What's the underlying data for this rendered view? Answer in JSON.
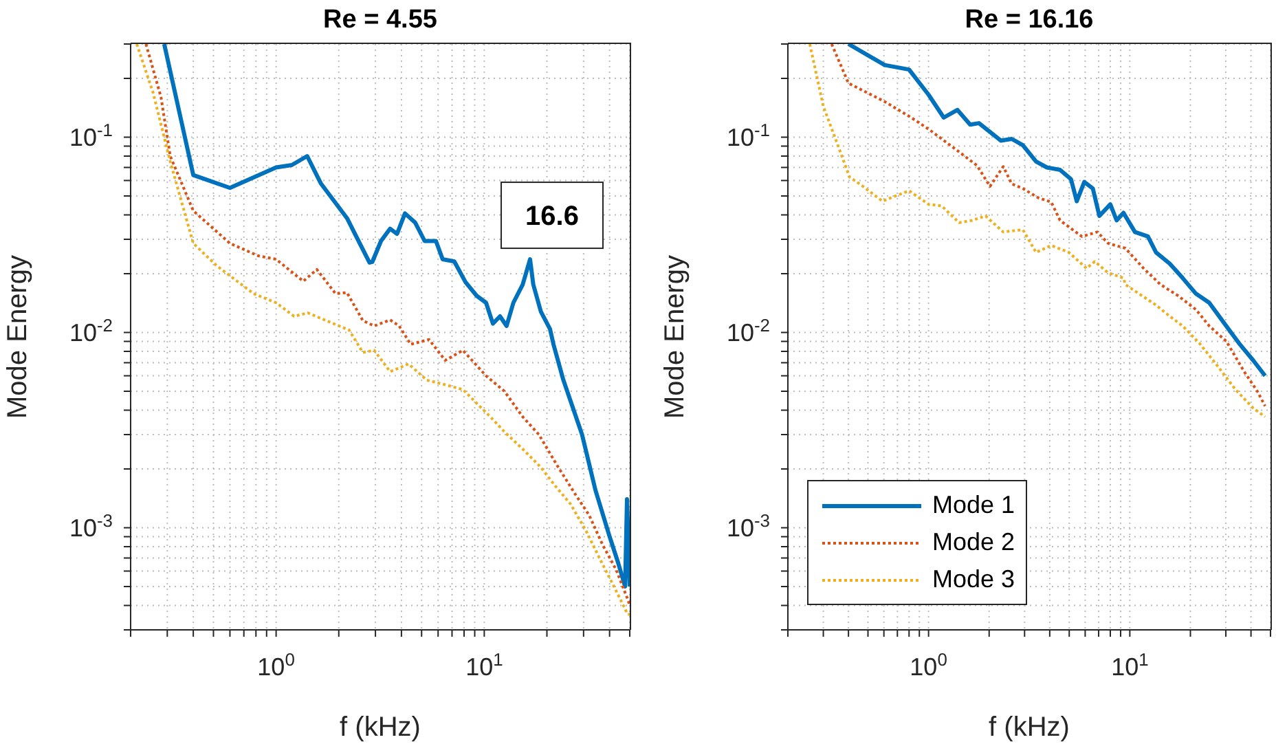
{
  "chart_data": [
    {
      "type": "line",
      "title": "Re = 4.55",
      "xlabel": "f (kHz)",
      "ylabel": "Mode Energy",
      "log": "xy",
      "grid": true,
      "xlim": [
        0.2,
        50
      ],
      "xticks": [
        {
          "value": 0.2,
          "label": null
        },
        {
          "value": 0.3,
          "label": null
        },
        {
          "value": 0.4,
          "label": null
        },
        {
          "value": 0.5,
          "label": null
        },
        {
          "value": 0.6,
          "label": null
        },
        {
          "value": 0.7,
          "label": null
        },
        {
          "value": 0.8,
          "label": null
        },
        {
          "value": 0.9,
          "label": null
        },
        {
          "value": 1,
          "label": "10$^{0}$"
        },
        {
          "value": 2,
          "label": null
        },
        {
          "value": 3,
          "label": null
        },
        {
          "value": 4,
          "label": null
        },
        {
          "value": 5,
          "label": null
        },
        {
          "value": 6,
          "label": null
        },
        {
          "value": 7,
          "label": null
        },
        {
          "value": 8,
          "label": null
        },
        {
          "value": 9,
          "label": null
        },
        {
          "value": 10,
          "label": "10$^{1}$"
        },
        {
          "value": 20,
          "label": null
        },
        {
          "value": 30,
          "label": null
        },
        {
          "value": 40,
          "label": null
        },
        {
          "value": 50,
          "label": null
        }
      ],
      "ylim": [
        0.0003,
        0.3
      ],
      "yticks": [
        {
          "value": 0.0003,
          "label": null
        },
        {
          "value": 0.0004,
          "label": null
        },
        {
          "value": 0.0005,
          "label": null
        },
        {
          "value": 0.0006,
          "label": null
        },
        {
          "value": 0.0007,
          "label": null
        },
        {
          "value": 0.0008,
          "label": null
        },
        {
          "value": 0.0009,
          "label": null
        },
        {
          "value": 0.001,
          "label": "10$^{-3}$"
        },
        {
          "value": 0.002,
          "label": null
        },
        {
          "value": 0.003,
          "label": null
        },
        {
          "value": 0.004,
          "label": null
        },
        {
          "value": 0.005,
          "label": null
        },
        {
          "value": 0.006,
          "label": null
        },
        {
          "value": 0.007,
          "label": null
        },
        {
          "value": 0.008,
          "label": null
        },
        {
          "value": 0.009,
          "label": null
        },
        {
          "value": 0.01,
          "label": "10$^{-2}$"
        },
        {
          "value": 0.02,
          "label": null
        },
        {
          "value": 0.03,
          "label": null
        },
        {
          "value": 0.04,
          "label": null
        },
        {
          "value": 0.05,
          "label": null
        },
        {
          "value": 0.06,
          "label": null
        },
        {
          "value": 0.07,
          "label": null
        },
        {
          "value": 0.08,
          "label": null
        },
        {
          "value": 0.09,
          "label": null
        },
        {
          "value": 0.1,
          "label": "10$^{-1}$"
        },
        {
          "value": 0.2,
          "label": null
        },
        {
          "value": 0.3,
          "label": null
        }
      ],
      "annotations": [
        {
          "text": "16.6",
          "x": 16.6,
          "y": 0.0237
        }
      ],
      "series": [
        {
          "color": "#0072bd",
          "line_style": "solid",
          "x": [
            0.29,
            0.4,
            0.6,
            1.0,
            1.19,
            1.41,
            1.64,
            2.19,
            2.81,
            2.9,
            3.19,
            3.53,
            3.81,
            4.16,
            4.66,
            5.17,
            5.86,
            6.31,
            7.18,
            8.13,
            9.2,
            10.2,
            11.0,
            11.9,
            12.8,
            13.8,
            15.3,
            16.6,
            17.2,
            18.7,
            20.7,
            21.5,
            24,
            29.5,
            34.2,
            39.9,
            44,
            47.5,
            48.5,
            50
          ],
          "values": [
            0.3,
            0.064,
            0.055,
            0.07,
            0.072,
            0.08,
            0.058,
            0.0385,
            0.0228,
            0.023,
            0.0294,
            0.034,
            0.032,
            0.0407,
            0.0365,
            0.0294,
            0.0294,
            0.0237,
            0.0231,
            0.0181,
            0.0154,
            0.0142,
            0.0111,
            0.0121,
            0.0108,
            0.0142,
            0.0176,
            0.0237,
            0.0176,
            0.0128,
            0.0104,
            0.0087,
            0.0057,
            0.003,
            0.00156,
            0.00091,
            0.00066,
            0.0005,
            0.0014,
            0.0005
          ]
        },
        {
          "color": "#d95319",
          "line_style": "dotted",
          "x": [
            0.237,
            0.28,
            0.31,
            0.4,
            0.6,
            0.82,
            1.0,
            1.35,
            1.57,
            1.93,
            2.19,
            2.61,
            2.96,
            3.53,
            3.9,
            4.43,
            5.43,
            6.49,
            7.9,
            10.2,
            12.5,
            15.3,
            18.3,
            22.3,
            27.2,
            31.9,
            37,
            43,
            48.9,
            50
          ],
          "values": [
            0.3,
            0.16,
            0.08,
            0.042,
            0.0286,
            0.0247,
            0.0237,
            0.0183,
            0.021,
            0.0158,
            0.016,
            0.0115,
            0.0108,
            0.0116,
            0.0108,
            0.0087,
            0.0092,
            0.0072,
            0.0081,
            0.006,
            0.005,
            0.0037,
            0.003,
            0.0021,
            0.0015,
            0.00116,
            0.00082,
            0.00061,
            0.00043,
            0.0004
          ]
        },
        {
          "color": "#edb120",
          "line_style": "dotted",
          "x": [
            0.214,
            0.256,
            0.31,
            0.4,
            0.52,
            0.78,
            1.0,
            1.22,
            1.42,
            1.74,
            2.24,
            2.61,
            2.96,
            3.53,
            4.33,
            5.3,
            6.49,
            7.9,
            9.7,
            10.7,
            12.5,
            15.3,
            18.7,
            21.9,
            26,
            30.9,
            36,
            42,
            48.9,
            50
          ],
          "values": [
            0.3,
            0.17,
            0.075,
            0.0286,
            0.0219,
            0.0158,
            0.0142,
            0.0121,
            0.0126,
            0.0115,
            0.0103,
            0.0079,
            0.0081,
            0.0063,
            0.0069,
            0.0057,
            0.0054,
            0.0051,
            0.0041,
            0.0037,
            0.0031,
            0.00253,
            0.00204,
            0.00164,
            0.00132,
            0.00096,
            0.00069,
            0.0005,
            0.00036,
            0.00036
          ]
        }
      ]
    },
    {
      "type": "line",
      "title": "Re = 16.16",
      "xlabel": "f (kHz)",
      "ylabel": "Mode Energy",
      "log": "xy",
      "grid": true,
      "legend": "bottom left",
      "xlim": [
        0.2,
        50
      ],
      "xticks": [
        {
          "value": 0.2,
          "label": null
        },
        {
          "value": 0.3,
          "label": null
        },
        {
          "value": 0.4,
          "label": null
        },
        {
          "value": 0.5,
          "label": null
        },
        {
          "value": 0.6,
          "label": null
        },
        {
          "value": 0.7,
          "label": null
        },
        {
          "value": 0.8,
          "label": null
        },
        {
          "value": 0.9,
          "label": null
        },
        {
          "value": 1,
          "label": "10$^{0}$"
        },
        {
          "value": 2,
          "label": null
        },
        {
          "value": 3,
          "label": null
        },
        {
          "value": 4,
          "label": null
        },
        {
          "value": 5,
          "label": null
        },
        {
          "value": 6,
          "label": null
        },
        {
          "value": 7,
          "label": null
        },
        {
          "value": 8,
          "label": null
        },
        {
          "value": 9,
          "label": null
        },
        {
          "value": 10,
          "label": "10$^{1}$"
        },
        {
          "value": 20,
          "label": null
        },
        {
          "value": 30,
          "label": null
        },
        {
          "value": 40,
          "label": null
        },
        {
          "value": 50,
          "label": null
        }
      ],
      "ylim": [
        0.0003,
        0.3
      ],
      "yticks": [
        {
          "value": 0.0003,
          "label": null
        },
        {
          "value": 0.0004,
          "label": null
        },
        {
          "value": 0.0005,
          "label": null
        },
        {
          "value": 0.0006,
          "label": null
        },
        {
          "value": 0.0007,
          "label": null
        },
        {
          "value": 0.0008,
          "label": null
        },
        {
          "value": 0.0009,
          "label": null
        },
        {
          "value": 0.001,
          "label": "10$^{-3}$"
        },
        {
          "value": 0.002,
          "label": null
        },
        {
          "value": 0.003,
          "label": null
        },
        {
          "value": 0.004,
          "label": null
        },
        {
          "value": 0.005,
          "label": null
        },
        {
          "value": 0.006,
          "label": null
        },
        {
          "value": 0.007,
          "label": null
        },
        {
          "value": 0.008,
          "label": null
        },
        {
          "value": 0.009,
          "label": null
        },
        {
          "value": 0.01,
          "label": "10$^{-2}$"
        },
        {
          "value": 0.02,
          "label": null
        },
        {
          "value": 0.03,
          "label": null
        },
        {
          "value": 0.04,
          "label": null
        },
        {
          "value": 0.05,
          "label": null
        },
        {
          "value": 0.06,
          "label": null
        },
        {
          "value": 0.07,
          "label": null
        },
        {
          "value": 0.08,
          "label": null
        },
        {
          "value": 0.09,
          "label": null
        },
        {
          "value": 0.1,
          "label": "10$^{-1}$"
        },
        {
          "value": 0.2,
          "label": null
        },
        {
          "value": 0.3,
          "label": null
        }
      ],
      "series": [
        {
          "name": "Mode 1",
          "color": "#0072bd",
          "line_style": "solid",
          "x": [
            0.4,
            0.606,
            0.8,
            1.0,
            1.19,
            1.39,
            1.61,
            1.78,
            2.29,
            2.59,
            2.94,
            3.42,
            3.87,
            4.5,
            5.1,
            5.45,
            5.94,
            6.55,
            7.06,
            8.0,
            8.6,
            9.3,
            10.6,
            12.3,
            13.5,
            15.8,
            18.3,
            21.3,
            24.8,
            28.8,
            35.2,
            41,
            47
          ],
          "values": [
            0.3,
            0.234,
            0.222,
            0.165,
            0.126,
            0.138,
            0.116,
            0.118,
            0.096,
            0.098,
            0.091,
            0.075,
            0.07,
            0.068,
            0.061,
            0.047,
            0.059,
            0.0546,
            0.0395,
            0.0453,
            0.0375,
            0.041,
            0.0327,
            0.031,
            0.0257,
            0.0225,
            0.019,
            0.0158,
            0.0142,
            0.0115,
            0.0087,
            0.0072,
            0.006
          ]
        },
        {
          "name": "Mode 2",
          "color": "#d95319",
          "line_style": "dotted",
          "x": [
            0.33,
            0.4,
            0.606,
            0.82,
            1.0,
            1.42,
            1.74,
            2.02,
            2.35,
            2.59,
            2.94,
            3.5,
            4.07,
            4.5,
            5.78,
            6.9,
            7.8,
            9.5,
            11.7,
            14.2,
            17.4,
            21.3,
            24.8,
            30.2,
            37,
            43,
            47
          ],
          "values": [
            0.3,
            0.189,
            0.152,
            0.126,
            0.11,
            0.084,
            0.0716,
            0.056,
            0.0707,
            0.0577,
            0.0546,
            0.049,
            0.0465,
            0.0375,
            0.031,
            0.0327,
            0.0286,
            0.027,
            0.0213,
            0.0176,
            0.0154,
            0.0131,
            0.0108,
            0.009,
            0.0063,
            0.005,
            0.0042
          ]
        },
        {
          "name": "Mode 3",
          "color": "#edb120",
          "line_style": "dotted",
          "x": [
            0.257,
            0.3,
            0.35,
            0.405,
            0.47,
            0.59,
            0.8,
            1.0,
            1.16,
            1.42,
            1.65,
            1.92,
            2.35,
            2.94,
            3.42,
            4.07,
            4.98,
            6.09,
            6.7,
            7.8,
            9.3,
            9.5,
            11.1,
            13.5,
            15.8,
            18.3,
            22.4,
            27.4,
            33.5,
            41,
            47
          ],
          "values": [
            0.3,
            0.144,
            0.094,
            0.0625,
            0.0562,
            0.047,
            0.0532,
            0.0453,
            0.0445,
            0.0365,
            0.0375,
            0.0395,
            0.0327,
            0.0336,
            0.0257,
            0.0279,
            0.0257,
            0.0213,
            0.0231,
            0.0202,
            0.019,
            0.0176,
            0.0158,
            0.0138,
            0.0121,
            0.0108,
            0.0087,
            0.0067,
            0.0051,
            0.0041,
            0.0037
          ]
        }
      ]
    }
  ]
}
